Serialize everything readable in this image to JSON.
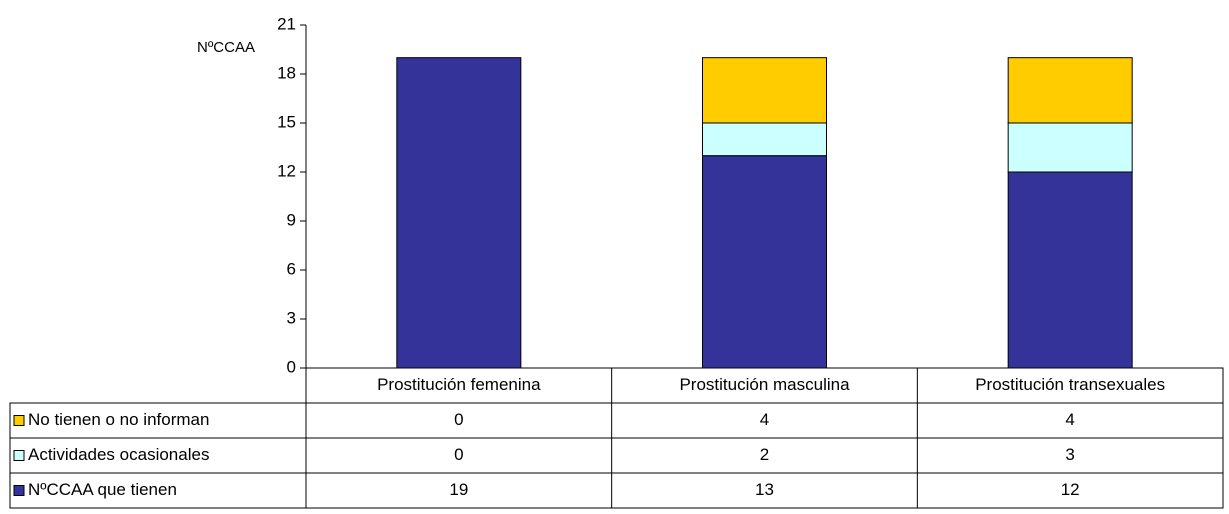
{
  "chart_data": {
    "type": "bar",
    "stacked": true,
    "y_label": "NºCCAA",
    "categories": [
      "Prostitución femenina",
      "Prostitución masculina",
      "Prostitución transexuales"
    ],
    "series": [
      {
        "name": "No tienen o no informan",
        "color": "#ffcc00",
        "values": [
          0,
          4,
          4
        ]
      },
      {
        "name": "Actividades ocasionales",
        "color": "#ccffff",
        "values": [
          0,
          2,
          3
        ]
      },
      {
        "name": "NºCCAA que tienen",
        "color": "#333399",
        "values": [
          19,
          13,
          12
        ]
      }
    ],
    "ylim": [
      0,
      21
    ],
    "yticks": [
      0,
      3,
      6,
      9,
      12,
      15,
      18,
      21
    ],
    "grid": false
  }
}
